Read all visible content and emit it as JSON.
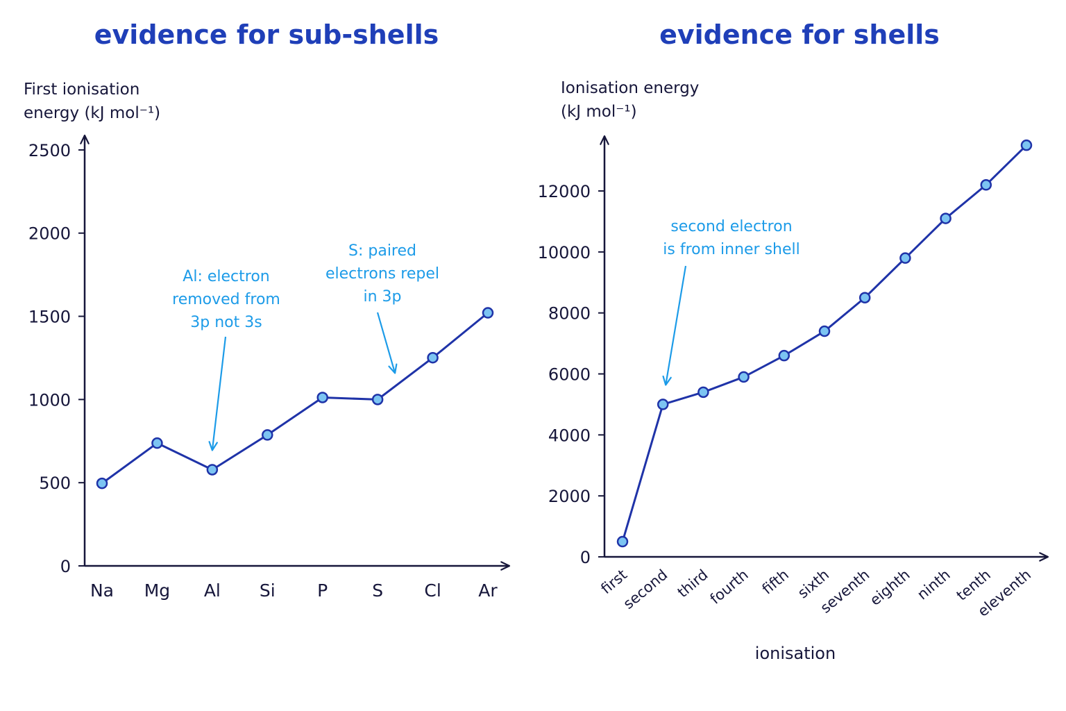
{
  "colors": {
    "title": "#1f3fb8",
    "line": "#1f33a8",
    "marker_fill": "#7cc4f2",
    "annotation": "#1c9be8",
    "axis": "#16163a"
  },
  "chart_data": [
    {
      "type": "line",
      "title": "evidence for sub-shells",
      "ylabel": "First ionisation\nenergy (kJ mol⁻¹)",
      "xlabel": "",
      "categories": [
        "Na",
        "Mg",
        "Al",
        "Si",
        "P",
        "S",
        "Cl",
        "Ar"
      ],
      "series": [
        {
          "values": [
            496,
            738,
            578,
            787,
            1012,
            1000,
            1251,
            1521
          ]
        }
      ],
      "ylim": [
        0,
        2700
      ],
      "yticks": [
        0,
        500,
        1000,
        1500,
        2000,
        2500
      ],
      "grid": false,
      "annotations": [
        {
          "text": "Al: electron\nremoved from\n3p not 3s",
          "target": "Al"
        },
        {
          "text": "S: paired\nelectrons repel\nin 3p",
          "target": "S"
        }
      ]
    },
    {
      "type": "line",
      "title": "evidence for shells",
      "ylabel": "Ionisation energy\n(kJ mol⁻¹)",
      "xlabel": "ionisation",
      "categories": [
        "first",
        "second",
        "third",
        "fourth",
        "fifth",
        "sixth",
        "seventh",
        "eighth",
        "ninth",
        "tenth",
        "eleventh"
      ],
      "series": [
        {
          "values": [
            500,
            5000,
            5400,
            5900,
            6600,
            7400,
            8500,
            9800,
            11100,
            12200,
            13500
          ]
        }
      ],
      "ylim": [
        0,
        13800
      ],
      "yticks": [
        0,
        2000,
        4000,
        6000,
        8000,
        10000,
        12000
      ],
      "grid": false,
      "annotations": [
        {
          "text": "second electron\nis from inner shell",
          "target": "second"
        }
      ]
    }
  ]
}
